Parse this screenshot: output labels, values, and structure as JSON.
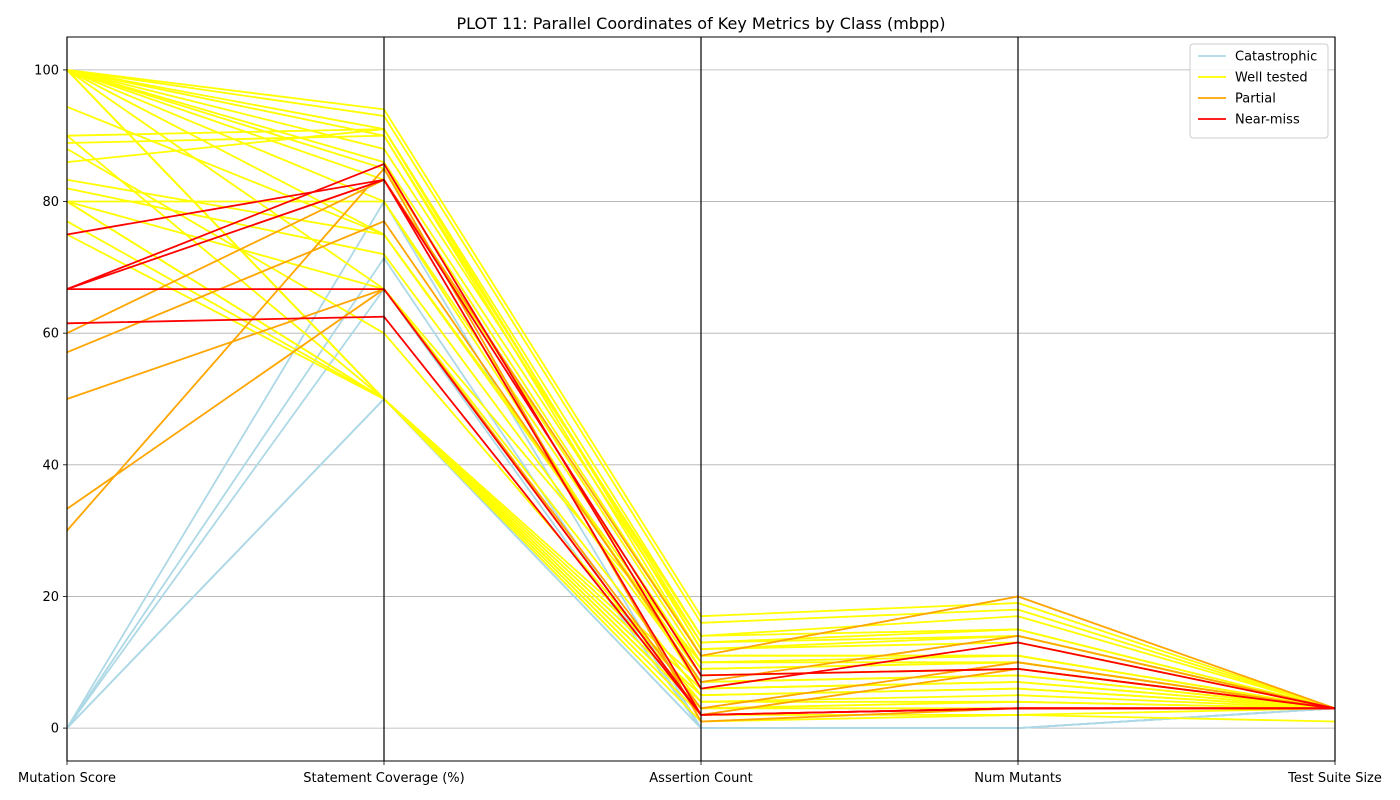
{
  "chart_data": {
    "type": "line",
    "subtype": "parallel-coordinates",
    "title": "PLOT 11: Parallel Coordinates of Key Metrics by Class (mbpp)",
    "dimensions": [
      "Mutation Score",
      "Statement Coverage (%)",
      "Assertion Count",
      "Num Mutants",
      "Test Suite Size"
    ],
    "ylim": [
      -5,
      105
    ],
    "yticks": [
      0,
      20,
      40,
      60,
      80,
      100
    ],
    "grid": true,
    "legend_position": "top-right",
    "classes": [
      {
        "name": "Catastrophic",
        "color": "#add8e6"
      },
      {
        "name": "Well tested",
        "color": "#ffff00"
      },
      {
        "name": "Partial",
        "color": "#ffa500"
      },
      {
        "name": "Near-miss",
        "color": "#ff0000"
      }
    ],
    "series": [
      {
        "class": "Catastrophic",
        "values": [
          0,
          50,
          0,
          0,
          3
        ]
      },
      {
        "class": "Catastrophic",
        "values": [
          0,
          50,
          0,
          0,
          3
        ]
      },
      {
        "class": "Catastrophic",
        "values": [
          0,
          66.7,
          0,
          0,
          3
        ]
      },
      {
        "class": "Catastrophic",
        "values": [
          0,
          71.4,
          0,
          0,
          3
        ]
      },
      {
        "class": "Catastrophic",
        "values": [
          0,
          80,
          0,
          0,
          3
        ]
      },
      {
        "class": "Well tested",
        "values": [
          100,
          94,
          17,
          19,
          3
        ]
      },
      {
        "class": "Well tested",
        "values": [
          100,
          93,
          16,
          18,
          3
        ]
      },
      {
        "class": "Well tested",
        "values": [
          100,
          91,
          14,
          17,
          3
        ]
      },
      {
        "class": "Well tested",
        "values": [
          100,
          90,
          13,
          15,
          3
        ]
      },
      {
        "class": "Well tested",
        "values": [
          100,
          88,
          14,
          15,
          3
        ]
      },
      {
        "class": "Well tested",
        "values": [
          100,
          86,
          13,
          14,
          3
        ]
      },
      {
        "class": "Well tested",
        "values": [
          100,
          85,
          11,
          11,
          3
        ]
      },
      {
        "class": "Well tested",
        "values": [
          100,
          83.3,
          10,
          10,
          3
        ]
      },
      {
        "class": "Well tested",
        "values": [
          100,
          80,
          9,
          10,
          3
        ]
      },
      {
        "class": "Well tested",
        "values": [
          100,
          75,
          8,
          9,
          3
        ]
      },
      {
        "class": "Well tested",
        "values": [
          100,
          66.7,
          10,
          11,
          3
        ]
      },
      {
        "class": "Well tested",
        "values": [
          100,
          50,
          7,
          8,
          3
        ]
      },
      {
        "class": "Well tested",
        "values": [
          100,
          50,
          6,
          7,
          3
        ]
      },
      {
        "class": "Well tested",
        "values": [
          100,
          50,
          5,
          6,
          3
        ]
      },
      {
        "class": "Well tested",
        "values": [
          94.4,
          75,
          9,
          10,
          3
        ]
      },
      {
        "class": "Well tested",
        "values": [
          90,
          91,
          12,
          14,
          3
        ]
      },
      {
        "class": "Well tested",
        "values": [
          90,
          50,
          4,
          5,
          3
        ]
      },
      {
        "class": "Well tested",
        "values": [
          88.9,
          90,
          11,
          11,
          3
        ]
      },
      {
        "class": "Well tested",
        "values": [
          88,
          60,
          4,
          4,
          3
        ]
      },
      {
        "class": "Well tested",
        "values": [
          86,
          91,
          12,
          13,
          3
        ]
      },
      {
        "class": "Well tested",
        "values": [
          83.3,
          75,
          8,
          9,
          3
        ]
      },
      {
        "class": "Well tested",
        "values": [
          82,
          72,
          7,
          8,
          3
        ]
      },
      {
        "class": "Well tested",
        "values": [
          80,
          80,
          6,
          7,
          3
        ]
      },
      {
        "class": "Well tested",
        "values": [
          80,
          66.7,
          5,
          6,
          3
        ]
      },
      {
        "class": "Well tested",
        "values": [
          80,
          50,
          3,
          4,
          3
        ]
      },
      {
        "class": "Well tested",
        "values": [
          80,
          50,
          2,
          2,
          1
        ]
      },
      {
        "class": "Well tested",
        "values": [
          77,
          50,
          3,
          3,
          3
        ]
      },
      {
        "class": "Well tested",
        "values": [
          75,
          50,
          1,
          2,
          3
        ]
      },
      {
        "class": "Partial",
        "values": [
          60,
          83.3,
          11,
          20,
          3
        ]
      },
      {
        "class": "Partial",
        "values": [
          57.1,
          77,
          7,
          14,
          3
        ]
      },
      {
        "class": "Partial",
        "values": [
          50,
          66.7,
          3,
          10,
          3
        ]
      },
      {
        "class": "Partial",
        "values": [
          33.3,
          66.7,
          2,
          9,
          3
        ]
      },
      {
        "class": "Partial",
        "values": [
          30,
          85,
          1,
          3,
          3
        ]
      },
      {
        "class": "Near-miss",
        "values": [
          75,
          83.3,
          8,
          9,
          3
        ]
      },
      {
        "class": "Near-miss",
        "values": [
          66.7,
          85.7,
          6,
          13,
          3
        ]
      },
      {
        "class": "Near-miss",
        "values": [
          66.7,
          83.3,
          2,
          3,
          3
        ]
      },
      {
        "class": "Near-miss",
        "values": [
          66.7,
          66.7,
          2,
          3,
          3
        ]
      },
      {
        "class": "Near-miss",
        "values": [
          61.5,
          62.5,
          2,
          3,
          3
        ]
      }
    ]
  }
}
